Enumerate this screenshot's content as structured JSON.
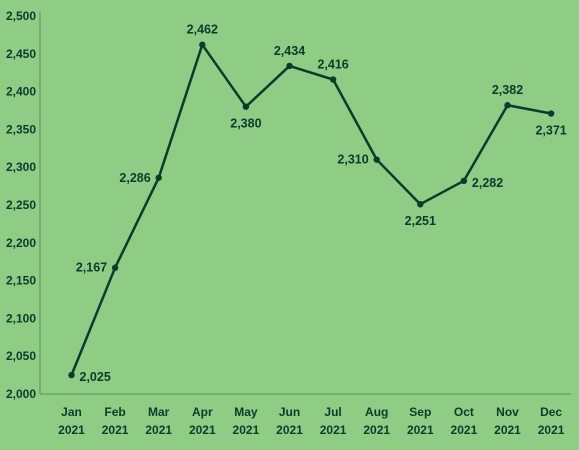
{
  "chart_data": {
    "type": "line",
    "categories": [
      [
        "Jan",
        "2021"
      ],
      [
        "Feb",
        "2021"
      ],
      [
        "Mar",
        "2021"
      ],
      [
        "Apr",
        "2021"
      ],
      [
        "May",
        "2021"
      ],
      [
        "Jun",
        "2021"
      ],
      [
        "Jul",
        "2021"
      ],
      [
        "Aug",
        "2021"
      ],
      [
        "Sep",
        "2021"
      ],
      [
        "Oct",
        "2021"
      ],
      [
        "Nov",
        "2021"
      ],
      [
        "Dec",
        "2021"
      ]
    ],
    "series": [
      {
        "values": [
          2025,
          2167,
          2286,
          2462,
          2380,
          2434,
          2416,
          2310,
          2251,
          2282,
          2382,
          2371
        ],
        "data_labels": [
          "2,025",
          "2,167",
          "2,286",
          "2,462",
          "2,380",
          "2,434",
          "2,416",
          "2,310",
          "2,251",
          "2,282",
          "2,382",
          "2,371"
        ]
      }
    ],
    "y_ticks": [
      "2,000",
      "2,050",
      "2,100",
      "2,150",
      "2,200",
      "2,250",
      "2,300",
      "2,350",
      "2,400",
      "2,450",
      "2,500"
    ],
    "ylim": [
      2000,
      2500
    ],
    "grid": false,
    "legend": "none",
    "colors": {
      "background": "#8fcd85",
      "line": "#0e3a2e",
      "text": "#0e3a2e"
    }
  }
}
